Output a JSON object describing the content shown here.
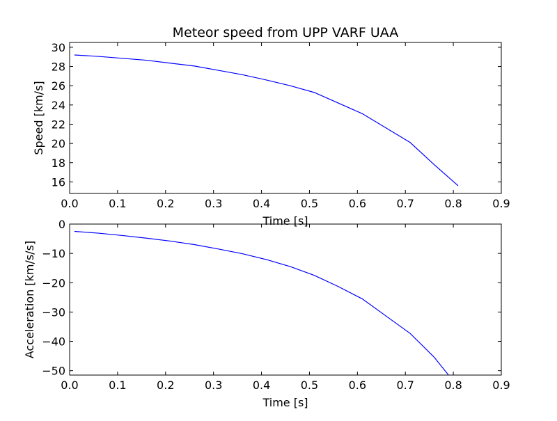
{
  "figure": {
    "title": "Meteor speed from  UPP VARF UAA"
  },
  "chart_data": [
    {
      "type": "line",
      "title": "Meteor speed from  UPP VARF UAA",
      "xlabel": "Time [s]",
      "ylabel": "Speed [km/s]",
      "xlim": [
        0.0,
        0.9
      ],
      "ylim": [
        14.8,
        30.5
      ],
      "xticks": [
        "0.0",
        "0.1",
        "0.2",
        "0.3",
        "0.4",
        "0.5",
        "0.6",
        "0.7",
        "0.8",
        "0.9"
      ],
      "yticks": [
        "16",
        "18",
        "20",
        "22",
        "24",
        "26",
        "28",
        "30"
      ],
      "grid": false,
      "series": [
        {
          "color": "#0000ff",
          "x": [
            0.01,
            0.06,
            0.11,
            0.16,
            0.21,
            0.26,
            0.31,
            0.36,
            0.41,
            0.46,
            0.51,
            0.56,
            0.61,
            0.66,
            0.71,
            0.76,
            0.81
          ],
          "y": [
            29.2,
            29.05,
            28.85,
            28.65,
            28.35,
            28.05,
            27.6,
            27.15,
            26.6,
            26.0,
            25.3,
            24.2,
            23.1,
            21.6,
            20.1,
            17.8,
            15.6
          ]
        }
      ]
    },
    {
      "type": "line",
      "title": "",
      "xlabel": "Time [s]",
      "ylabel": "Acceleration [km/s/s]",
      "xlim": [
        0.0,
        0.9
      ],
      "ylim": [
        -51.5,
        0
      ],
      "xticks": [
        "0.0",
        "0.1",
        "0.2",
        "0.3",
        "0.4",
        "0.5",
        "0.6",
        "0.7",
        "0.8",
        "0.9"
      ],
      "yticks": [
        "−50",
        "−40",
        "−30",
        "−20",
        "−10",
        "0"
      ],
      "grid": false,
      "series": [
        {
          "color": "#0000ff",
          "x": [
            0.01,
            0.06,
            0.11,
            0.16,
            0.21,
            0.26,
            0.31,
            0.36,
            0.41,
            0.46,
            0.51,
            0.56,
            0.61,
            0.66,
            0.71,
            0.76,
            0.79
          ],
          "y": [
            -2.5,
            -3.1,
            -3.9,
            -4.8,
            -5.8,
            -7.0,
            -8.5,
            -10.1,
            -12.1,
            -14.5,
            -17.5,
            -21.3,
            -25.5,
            -31.4,
            -37.3,
            -45.4,
            -51.5
          ]
        }
      ]
    }
  ]
}
